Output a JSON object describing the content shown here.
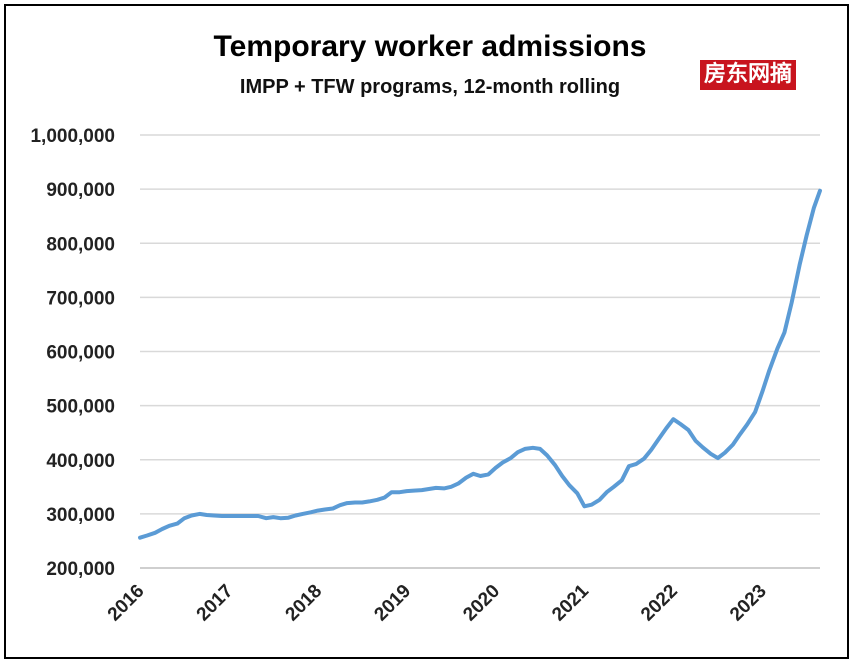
{
  "header": {
    "title": "Temporary worker admissions",
    "subtitle": "IMPP + TFW programs, 12-month rolling",
    "watermark": "房东网摘"
  },
  "chart_data": {
    "type": "line",
    "title": "Temporary worker admissions",
    "subtitle": "IMPP + TFW programs, 12-month rolling",
    "xlabel": "",
    "ylabel": "",
    "xlim": [
      2016.0,
      2023.65
    ],
    "ylim": [
      200000,
      1000000
    ],
    "grid": true,
    "line_color": "#5b9bd5",
    "y_ticks": [
      {
        "value": 200000,
        "label": "200,000"
      },
      {
        "value": 300000,
        "label": "300,000"
      },
      {
        "value": 400000,
        "label": "400,000"
      },
      {
        "value": 500000,
        "label": "500,000"
      },
      {
        "value": 600000,
        "label": "600,000"
      },
      {
        "value": 700000,
        "label": "700,000"
      },
      {
        "value": 800000,
        "label": "800,000"
      },
      {
        "value": 900000,
        "label": "900,000"
      },
      {
        "value": 1000000,
        "label": "1,000,000"
      }
    ],
    "x_ticks": [
      {
        "value": 2016,
        "label": "2016"
      },
      {
        "value": 2017,
        "label": "2017"
      },
      {
        "value": 2018,
        "label": "2018"
      },
      {
        "value": 2019,
        "label": "2019"
      },
      {
        "value": 2020,
        "label": "2020"
      },
      {
        "value": 2021,
        "label": "2021"
      },
      {
        "value": 2022,
        "label": "2022"
      },
      {
        "value": 2023,
        "label": "2023"
      }
    ],
    "series": [
      {
        "x": [
          2016.0,
          2016.08,
          2016.17,
          2016.25,
          2016.33,
          2016.42,
          2016.5,
          2016.58,
          2016.67,
          2016.75,
          2016.83,
          2016.92,
          2017.0,
          2017.08,
          2017.17,
          2017.25,
          2017.33,
          2017.42,
          2017.5,
          2017.58,
          2017.67,
          2017.75,
          2017.83,
          2017.92,
          2018.0,
          2018.08,
          2018.17,
          2018.25,
          2018.33,
          2018.42,
          2018.5,
          2018.58,
          2018.67,
          2018.75,
          2018.83,
          2018.92,
          2019.0,
          2019.08,
          2019.17,
          2019.25,
          2019.33,
          2019.42,
          2019.5,
          2019.58,
          2019.67,
          2019.75,
          2019.83,
          2019.92,
          2020.0,
          2020.08,
          2020.17,
          2020.25,
          2020.33,
          2020.42,
          2020.5,
          2020.58,
          2020.67,
          2020.75,
          2020.83,
          2020.92,
          2021.0,
          2021.08,
          2021.17,
          2021.25,
          2021.33,
          2021.42,
          2021.5,
          2021.58,
          2021.67,
          2021.75,
          2021.83,
          2021.92,
          2022.0,
          2022.08,
          2022.17,
          2022.25,
          2022.33,
          2022.42,
          2022.5,
          2022.58,
          2022.67,
          2022.75,
          2022.83,
          2022.92,
          2023.0,
          2023.08,
          2023.17,
          2023.25,
          2023.33,
          2023.42,
          2023.5,
          2023.58,
          2023.65
        ],
        "values": [
          256000,
          260000,
          265000,
          272000,
          278000,
          282000,
          292000,
          297000,
          300000,
          298000,
          297000,
          296000,
          296000,
          296000,
          296000,
          296000,
          296000,
          292000,
          294000,
          292000,
          293000,
          297000,
          300000,
          303000,
          306000,
          308000,
          310000,
          316000,
          320000,
          321000,
          321000,
          323000,
          326000,
          330000,
          340000,
          340000,
          342000,
          343000,
          344000,
          346000,
          348000,
          347000,
          350000,
          356000,
          367000,
          374000,
          370000,
          373000,
          385000,
          395000,
          403000,
          414000,
          420000,
          422000,
          420000,
          408000,
          390000,
          370000,
          353000,
          338000,
          314000,
          317000,
          326000,
          340000,
          350000,
          362000,
          388000,
          392000,
          402000,
          418000,
          437000,
          458000,
          475000,
          466000,
          455000,
          435000,
          423000,
          411000,
          403000,
          413000,
          428000,
          447000,
          465000,
          488000,
          525000,
          565000,
          605000,
          635000,
          690000,
          760000,
          815000,
          865000,
          897000
        ]
      }
    ]
  }
}
